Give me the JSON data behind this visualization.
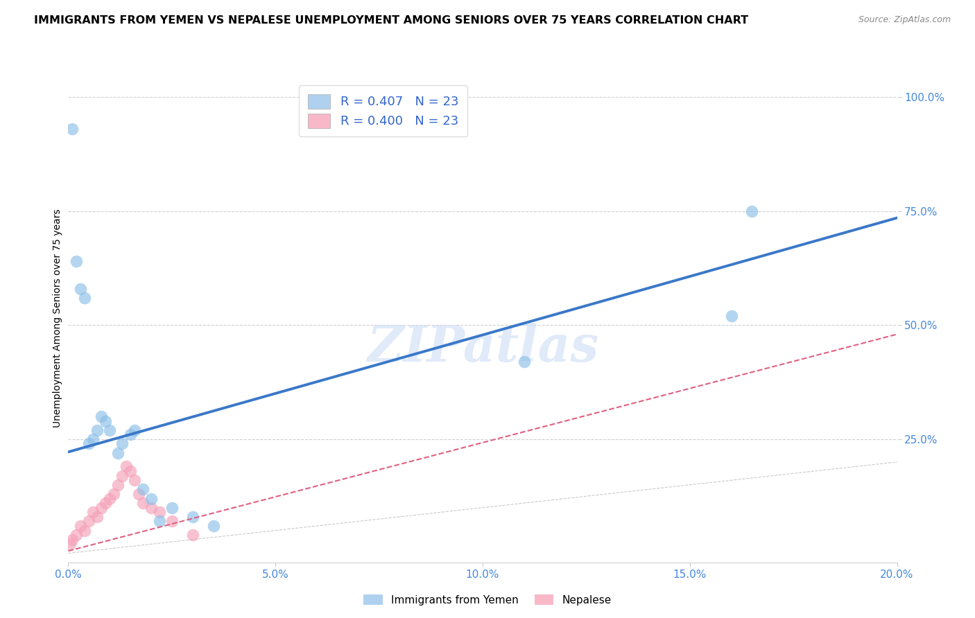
{
  "title": "IMMIGRANTS FROM YEMEN VS NEPALESE UNEMPLOYMENT AMONG SENIORS OVER 75 YEARS CORRELATION CHART",
  "source": "Source: ZipAtlas.com",
  "ylabel": "Unemployment Among Seniors over 75 years",
  "xlim": [
    0.0,
    0.2
  ],
  "ylim": [
    -0.02,
    1.05
  ],
  "xticks": [
    0.0,
    0.05,
    0.1,
    0.15,
    0.2
  ],
  "yticks": [
    0.25,
    0.5,
    0.75,
    1.0
  ],
  "xtick_labels": [
    "0.0%",
    "5.0%",
    "10.0%",
    "15.0%",
    "20.0%"
  ],
  "ytick_labels": [
    "25.0%",
    "50.0%",
    "75.0%",
    "100.0%"
  ],
  "blue_color": "#8bbfe8",
  "pink_color": "#f4a0b8",
  "blue_line_color": "#3a78c9",
  "pink_line_color": "#e06080",
  "ref_line_color": "#c8c8c8",
  "watermark": "ZIPatlas",
  "blue_scatter_x": [
    0.001,
    0.002,
    0.003,
    0.004,
    0.005,
    0.006,
    0.007,
    0.008,
    0.009,
    0.01,
    0.012,
    0.013,
    0.015,
    0.016,
    0.018,
    0.02,
    0.022,
    0.025,
    0.03,
    0.035,
    0.11,
    0.16,
    0.165
  ],
  "blue_scatter_y": [
    0.93,
    0.64,
    0.58,
    0.56,
    0.24,
    0.25,
    0.27,
    0.3,
    0.29,
    0.27,
    0.22,
    0.24,
    0.26,
    0.27,
    0.14,
    0.12,
    0.07,
    0.1,
    0.08,
    0.06,
    0.42,
    0.52,
    0.75
  ],
  "pink_scatter_x": [
    0.0005,
    0.001,
    0.002,
    0.003,
    0.004,
    0.005,
    0.006,
    0.007,
    0.008,
    0.009,
    0.01,
    0.011,
    0.012,
    0.013,
    0.014,
    0.015,
    0.016,
    0.017,
    0.018,
    0.02,
    0.022,
    0.025,
    0.03
  ],
  "pink_scatter_y": [
    0.02,
    0.03,
    0.04,
    0.06,
    0.05,
    0.07,
    0.09,
    0.08,
    0.1,
    0.11,
    0.12,
    0.13,
    0.15,
    0.17,
    0.19,
    0.18,
    0.16,
    0.13,
    0.11,
    0.1,
    0.09,
    0.07,
    0.04
  ],
  "blue_line_x": [
    0.0,
    0.2
  ],
  "blue_line_y": [
    0.222,
    0.735
  ],
  "pink_line_x": [
    0.0,
    0.2
  ],
  "pink_line_y": [
    0.005,
    0.48
  ],
  "ref_line_x": [
    0.0,
    1.0
  ],
  "ref_line_y": [
    0.0,
    1.0
  ],
  "figsize": [
    14.06,
    8.92
  ],
  "dpi": 100,
  "legend_blue_label": "R = 0.407   N = 23",
  "legend_pink_label": "R = 0.400   N = 23",
  "legend_blue_color": "#b0d0f0",
  "legend_pink_color": "#f8b8c8",
  "bottom_label_blue": "Immigrants from Yemen",
  "bottom_label_pink": "Nepalese"
}
